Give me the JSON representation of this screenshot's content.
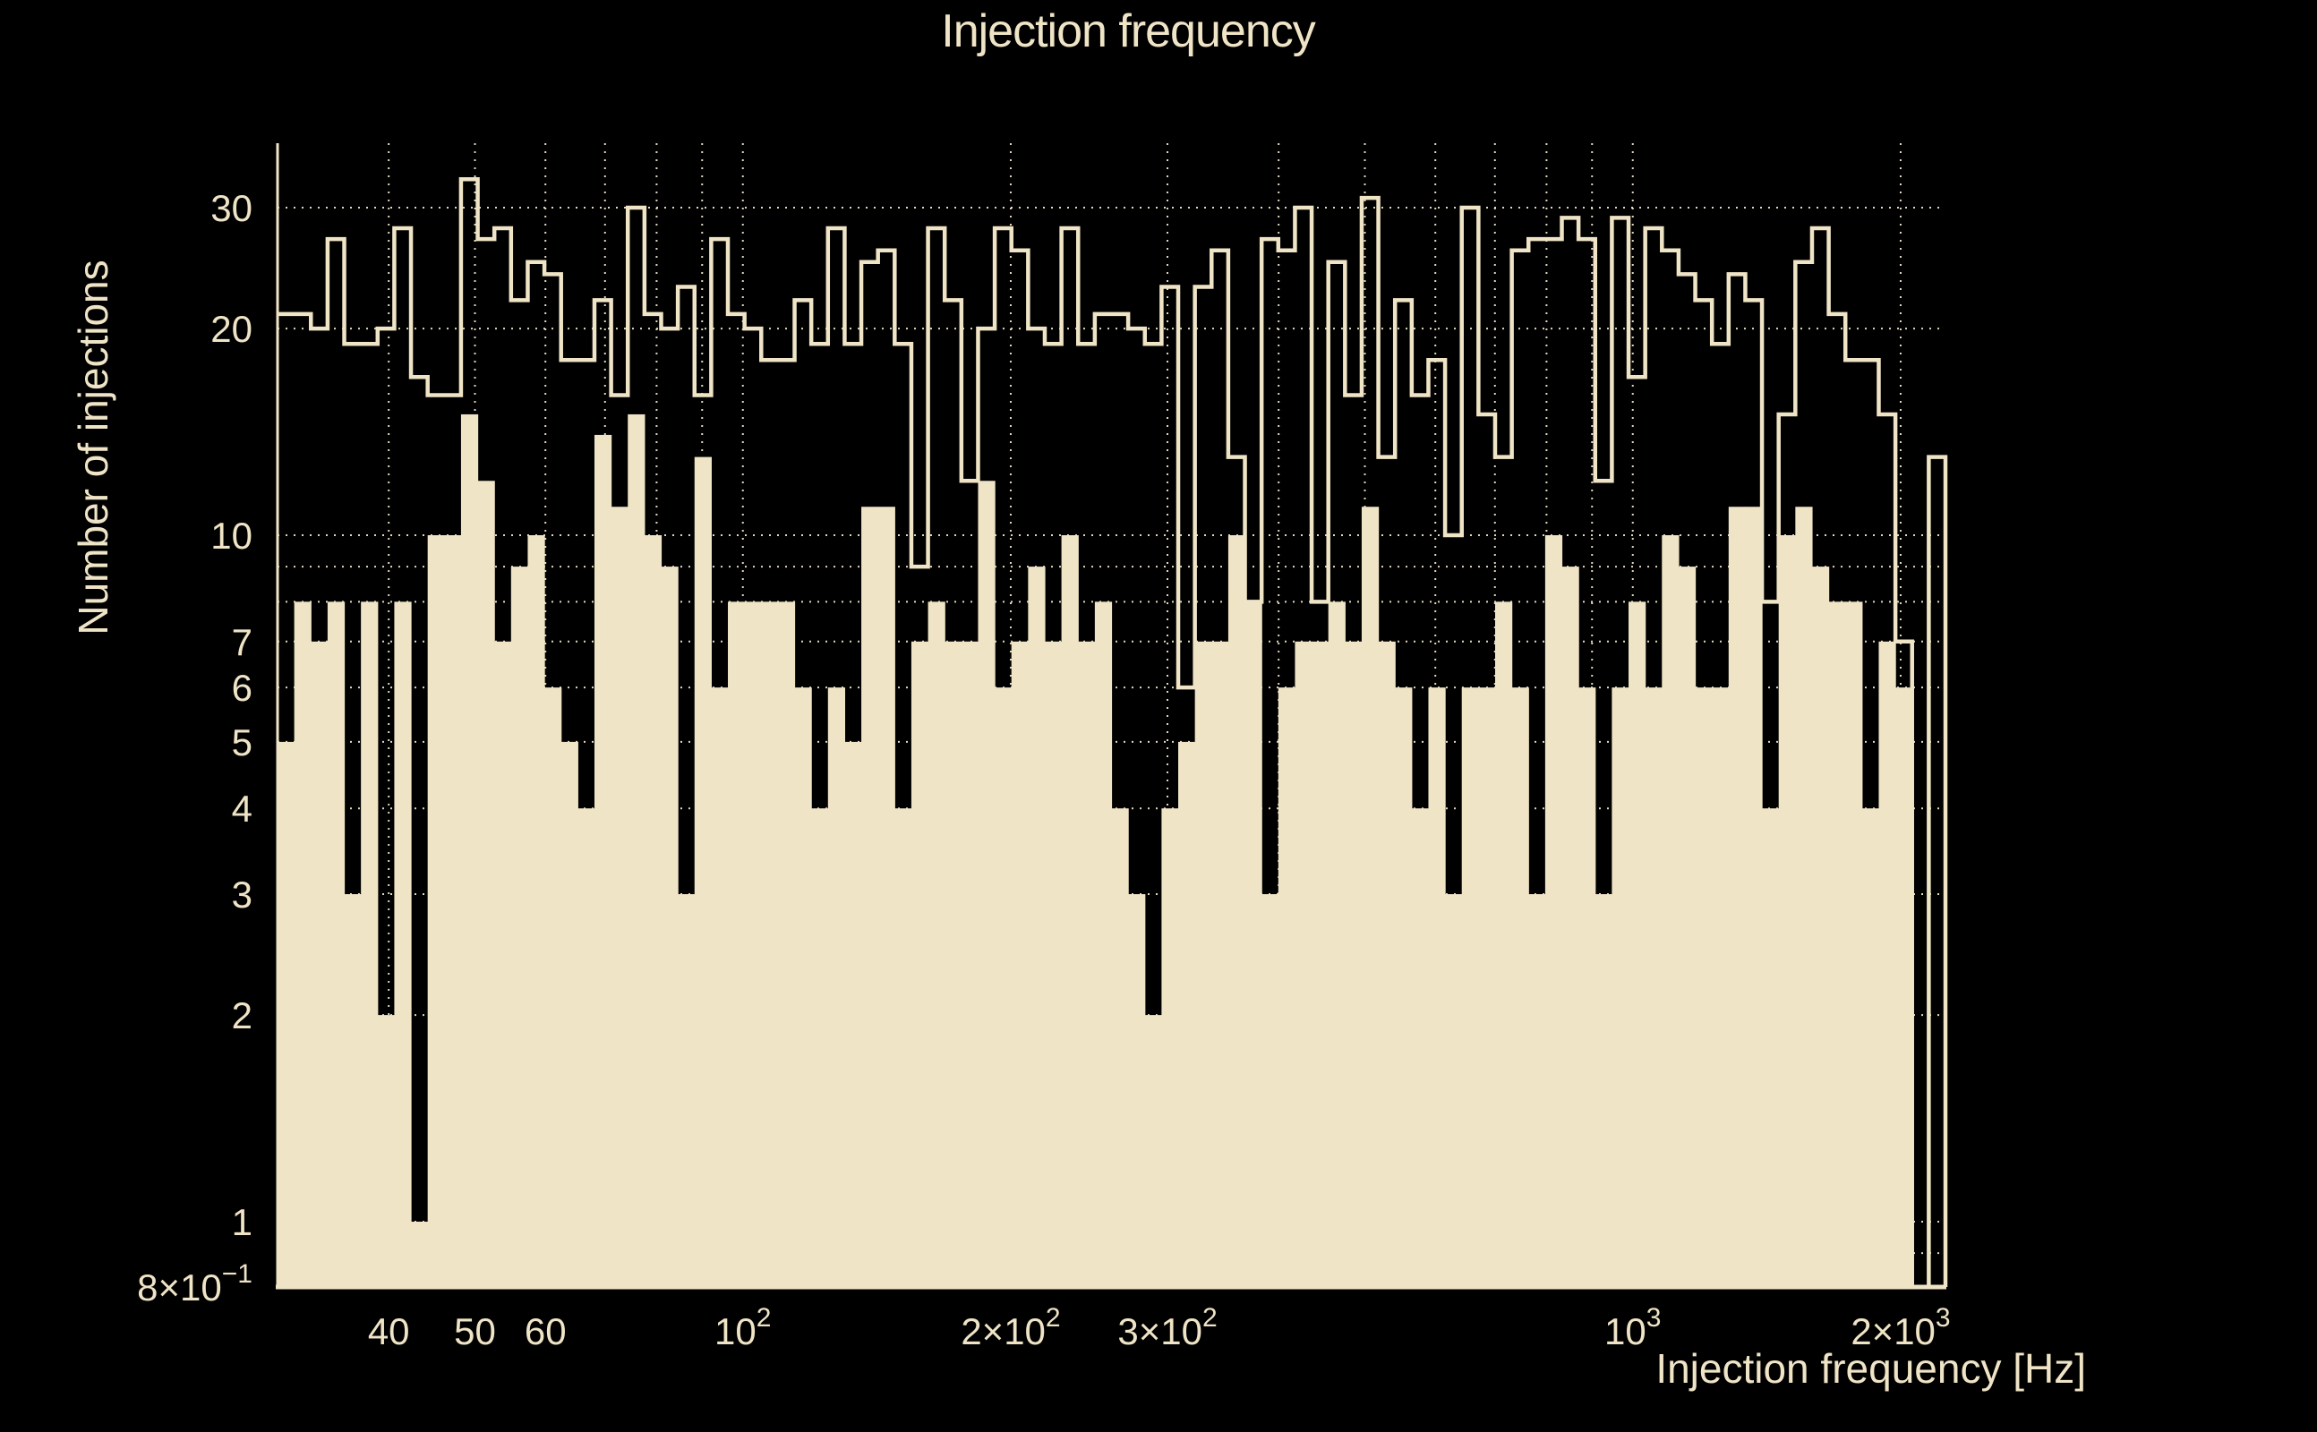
{
  "title": "Injection frequency",
  "colors": {
    "background": "#000000",
    "foreground": "#efe4c6",
    "grid": "#efe4c6",
    "bar_fill": "#efe4c6",
    "step_line": "#efe4c6"
  },
  "chart_data": {
    "type": "bar",
    "subtype": "log-log histogram, two series (filled bars + step outline)",
    "title": "Injection frequency",
    "xlabel": "Injection frequency [Hz]",
    "ylabel": "Number of injections",
    "xlim_hz": [
      30,
      2254
    ],
    "ylim": [
      0.8,
      37.3
    ],
    "bins": 100,
    "bin_spacing": "logarithmic",
    "grid": "dotted, cream, at log decades and subdecades",
    "x_grid_values": [
      40,
      50,
      60,
      70,
      80,
      90,
      100,
      200,
      300,
      400,
      500,
      600,
      700,
      800,
      900,
      1000,
      2000
    ],
    "y_grid_values": [
      0.9,
      1,
      2,
      3,
      4,
      5,
      6,
      7,
      8,
      9,
      10,
      20,
      30
    ],
    "series": [
      {
        "name": "outline-step-histogram",
        "style": "step",
        "values": [
          21,
          21,
          20,
          27,
          19,
          19,
          20,
          28,
          17,
          16,
          16,
          33,
          27,
          28,
          22,
          25,
          24,
          18,
          18,
          22,
          16,
          30,
          21,
          20,
          23,
          16,
          27,
          21,
          20,
          18,
          18,
          22,
          19,
          28,
          19,
          25,
          26,
          19,
          9,
          28,
          22,
          12,
          20,
          28,
          26,
          20,
          19,
          28,
          19,
          21,
          21,
          20,
          19,
          23,
          6,
          23,
          26,
          13,
          8,
          27,
          26,
          30,
          8,
          25,
          16,
          31,
          13,
          22,
          16,
          18,
          10,
          30,
          15,
          13,
          26,
          27,
          27,
          29,
          27,
          12,
          29,
          17,
          28,
          26,
          24,
          22,
          19,
          24,
          22,
          8,
          15,
          25,
          28,
          21,
          18,
          18,
          15,
          7,
          0,
          13
        ]
      },
      {
        "name": "filled-histogram",
        "style": "filled",
        "values": [
          5,
          8,
          7,
          8,
          3,
          8,
          2,
          8,
          1,
          10,
          10,
          15,
          12,
          7,
          9,
          10,
          6,
          5,
          4,
          14,
          11,
          15,
          10,
          9,
          3,
          13,
          6,
          8,
          8,
          8,
          8,
          6,
          4,
          6,
          5,
          11,
          11,
          4,
          7,
          8,
          7,
          7,
          12,
          6,
          7,
          9,
          7,
          10,
          7,
          8,
          4,
          3,
          2,
          4,
          5,
          7,
          7,
          10,
          8,
          3,
          6,
          7,
          7,
          8,
          7,
          11,
          7,
          6,
          4,
          6,
          3,
          6,
          6,
          8,
          6,
          3,
          10,
          9,
          6,
          3,
          6,
          8,
          6,
          10,
          9,
          6,
          6,
          11,
          11,
          4,
          10,
          11,
          9,
          8,
          8,
          4,
          7,
          6,
          0,
          0
        ]
      }
    ],
    "x_ticks": [
      {
        "main": "40",
        "sup": "",
        "value": 40
      },
      {
        "main": "50",
        "sup": "",
        "value": 50
      },
      {
        "main": "60",
        "sup": "",
        "value": 60
      },
      {
        "main": "10",
        "sup": "2",
        "value": 100
      },
      {
        "main": "2×10",
        "sup": "2",
        "value": 200
      },
      {
        "main": "3×10",
        "sup": "2",
        "value": 300
      },
      {
        "main": "10",
        "sup": "3",
        "value": 1000
      },
      {
        "main": "2×10",
        "sup": "3",
        "value": 2000
      }
    ],
    "y_ticks": [
      {
        "main": "30",
        "sup": "",
        "value": 30
      },
      {
        "main": "20",
        "sup": "",
        "value": 20
      },
      {
        "main": "10",
        "sup": "",
        "value": 10
      },
      {
        "main": "7",
        "sup": "",
        "value": 7
      },
      {
        "main": "6",
        "sup": "",
        "value": 6
      },
      {
        "main": "5",
        "sup": "",
        "value": 5
      },
      {
        "main": "4",
        "sup": "",
        "value": 4
      },
      {
        "main": "3",
        "sup": "",
        "value": 3
      },
      {
        "main": "2",
        "sup": "",
        "value": 2
      },
      {
        "main": "1",
        "sup": "",
        "value": 1
      },
      {
        "main": "8×10",
        "sup": "−1",
        "value": 0.8
      }
    ]
  }
}
